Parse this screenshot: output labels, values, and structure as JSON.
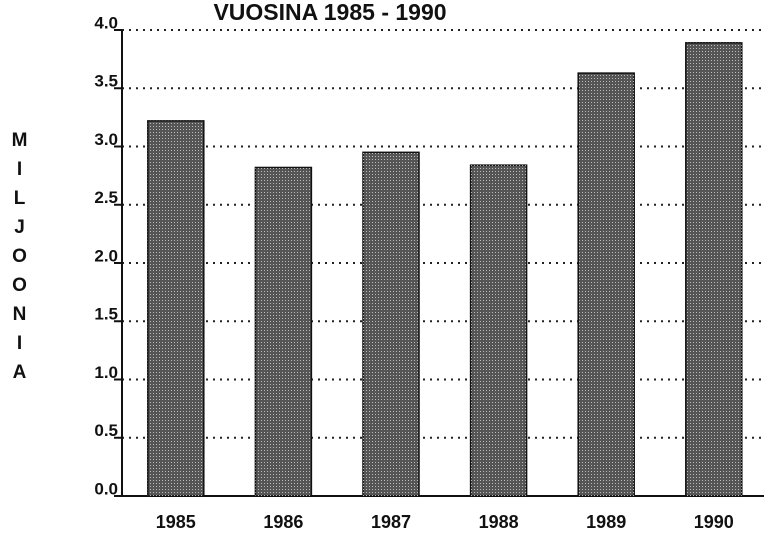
{
  "chart_data": {
    "type": "bar",
    "title": "VUOSINA  1985 - 1990",
    "y_label": "MILJOONIA",
    "categories": [
      "1985",
      "1986",
      "1987",
      "1988",
      "1989",
      "1990"
    ],
    "values": [
      3.22,
      2.82,
      2.95,
      2.84,
      3.63,
      3.89
    ],
    "color": "#555555",
    "ylim": [
      0,
      4
    ],
    "yticks": [
      {
        "value": 0,
        "label": "0.0"
      },
      {
        "value": 0.5,
        "label": "0.5"
      },
      {
        "value": 1,
        "label": "1.0"
      },
      {
        "value": 1.5,
        "label": "1.5"
      },
      {
        "value": 2,
        "label": "2.0"
      },
      {
        "value": 2.5,
        "label": "2.5"
      },
      {
        "value": 3,
        "label": "3.0"
      },
      {
        "value": 3.5,
        "label": "3.5"
      },
      {
        "value": 4,
        "label": "4.0"
      }
    ],
    "grid": true
  }
}
